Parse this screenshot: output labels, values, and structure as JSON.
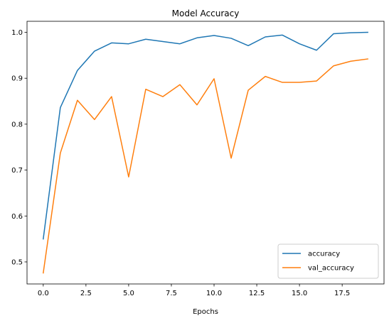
{
  "chart_data": {
    "type": "line",
    "title": "Model Accuracy",
    "xlabel": "Epochs",
    "ylabel": "",
    "xlim": [
      -0.95,
      19.95
    ],
    "ylim": [
      0.452,
      1.024
    ],
    "x_ticks": [
      0.0,
      2.5,
      5.0,
      7.5,
      10.0,
      12.5,
      15.0,
      17.5
    ],
    "x_tick_labels": [
      "0.0",
      "2.5",
      "5.0",
      "7.5",
      "10.0",
      "12.5",
      "15.0",
      "17.5"
    ],
    "y_ticks": [
      0.5,
      0.6,
      0.7,
      0.8,
      0.9,
      1.0
    ],
    "y_tick_labels": [
      "0.5",
      "0.6",
      "0.7",
      "0.8",
      "0.9",
      "1.0"
    ],
    "grid": false,
    "legend_position": "lower-right",
    "x": [
      0,
      1,
      2,
      3,
      4,
      5,
      6,
      7,
      8,
      9,
      10,
      11,
      12,
      13,
      14,
      15,
      16,
      17,
      18,
      19
    ],
    "series": [
      {
        "name": "accuracy",
        "color": "#1f77b4",
        "values": [
          0.55,
          0.836,
          0.917,
          0.959,
          0.977,
          0.975,
          0.985,
          0.98,
          0.975,
          0.988,
          0.993,
          0.987,
          0.971,
          0.99,
          0.994,
          0.975,
          0.961,
          0.997,
          0.999,
          1.0
        ]
      },
      {
        "name": "val_accuracy",
        "color": "#ff7f0e",
        "values": [
          0.476,
          0.737,
          0.852,
          0.81,
          0.86,
          0.685,
          0.876,
          0.86,
          0.886,
          0.842,
          0.899,
          0.726,
          0.874,
          0.904,
          0.891,
          0.891,
          0.894,
          0.927,
          0.937,
          0.942
        ]
      }
    ]
  }
}
